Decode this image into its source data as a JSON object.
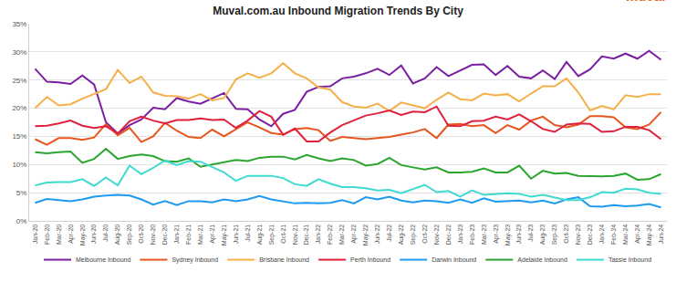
{
  "chart_data": {
    "type": "line",
    "title": "Muval.com.au Inbound Migration Trends By City",
    "annotations": [
      "muval"
    ],
    "categories": [
      "Jan-20",
      "Feb-20",
      "Mar-20",
      "Apr-20",
      "May-20",
      "Jun-20",
      "Jul-20",
      "Aug-20",
      "Sep-20",
      "Oct-20",
      "Nov-20",
      "Dec-20",
      "Jan-21",
      "Feb-21",
      "Mar-21",
      "Apr-21",
      "May-21",
      "Jun-21",
      "Jul-21",
      "Aug-21",
      "Sep-21",
      "Oct-21",
      "Nov-21",
      "Dec-21",
      "Jan-22",
      "Feb-22",
      "Mar-22",
      "Apr-22",
      "May-22",
      "Jun-22",
      "Jul-22",
      "Aug-22",
      "Sep-22",
      "Oct-22",
      "Nov-22",
      "Dec-22",
      "Jan-23",
      "Feb-23",
      "Mar-23",
      "Apr-23",
      "May-23",
      "Jun-23",
      "Jul-23",
      "Aug-23",
      "Sep-23",
      "Oct-23",
      "Nov-23",
      "Dec-23",
      "Jan-24",
      "Feb-24",
      "Mar-24",
      "Apr-24",
      "May-24",
      "Jun-24"
    ],
    "series": [
      {
        "name": "Melbourne Inbound",
        "color": "#7b1fa2",
        "values": [
          27,
          24.7,
          24.6,
          24.3,
          25.8,
          24.2,
          17.5,
          15.5,
          17,
          18,
          20.1,
          19.8,
          21.8,
          21.2,
          20.8,
          21.8,
          22.7,
          19.9,
          19.8,
          18,
          16.8,
          19,
          19.7,
          22.9,
          23.8,
          23.9,
          25.3,
          25.6,
          26.2,
          27,
          25.9,
          27.6,
          24.4,
          25.3,
          27.3,
          25.7,
          26.7,
          27.7,
          27.8,
          25.9,
          27.5,
          25.6,
          25.3,
          26.7,
          25.2,
          28.2,
          25.7,
          26.9,
          29.2,
          28.8,
          29.7,
          28.8,
          30.2,
          28.6
        ]
      },
      {
        "name": "Sydney Inbound",
        "color": "#e8561e",
        "values": [
          14.5,
          13.5,
          14.7,
          14.7,
          14.4,
          14.8,
          17.2,
          15.2,
          16.5,
          14,
          15,
          17.4,
          16,
          14.9,
          14.7,
          16.2,
          15,
          16.2,
          17.5,
          16.6,
          15.6,
          15.3,
          16.3,
          16.5,
          16.1,
          14.2,
          14.9,
          14.7,
          14.5,
          14.7,
          14.9,
          15.3,
          15.7,
          16.3,
          14.7,
          17.1,
          17.2,
          16.8,
          17,
          15.6,
          17,
          16.2,
          17.8,
          18.5,
          17,
          16.6,
          17.1,
          18.6,
          18.6,
          18.4,
          16.6,
          16.3,
          17.1,
          19.3
        ]
      },
      {
        "name": "Brisbane Inbound",
        "color": "#f5b04a",
        "values": [
          20,
          22,
          20.5,
          20.7,
          21.7,
          22.5,
          23.4,
          26.8,
          24.5,
          25.6,
          22.8,
          22.2,
          22.1,
          21.7,
          22.5,
          21.4,
          21.8,
          25.1,
          26.2,
          25.4,
          26.2,
          28,
          26.2,
          25.3,
          23.7,
          23.3,
          21.1,
          20.3,
          20.1,
          20.8,
          19.5,
          21,
          20.5,
          20,
          21.5,
          22.8,
          21.6,
          21.4,
          22.6,
          22.3,
          22.5,
          21.2,
          22.6,
          23.9,
          23.9,
          25.3,
          22.8,
          19.6,
          20.4,
          19.8,
          22.3,
          22,
          22.5,
          22.5
        ]
      },
      {
        "name": "Perth Inbound",
        "color": "#e0213d",
        "values": [
          16.8,
          16.9,
          17.3,
          17.8,
          16.9,
          16.5,
          16.8,
          15.5,
          17.7,
          18.5,
          17.8,
          17.3,
          17.9,
          17.9,
          18.2,
          17.9,
          18,
          16.5,
          17.8,
          19.5,
          18.5,
          15.3,
          16.4,
          14.1,
          14.1,
          15.7,
          17,
          17.9,
          18.7,
          19.1,
          19.6,
          18.8,
          19.4,
          19.3,
          20.3,
          16.9,
          16.8,
          17.7,
          17.8,
          18.5,
          18,
          18.9,
          17.7,
          16.3,
          15.8,
          17.1,
          17.3,
          17.2,
          15.8,
          15.9,
          16.7,
          16.7,
          16.1,
          14.5
        ]
      },
      {
        "name": "Darwin Inbound",
        "color": "#1e9bf0",
        "values": [
          3.2,
          3.9,
          3.7,
          3.5,
          3.8,
          4.3,
          4.5,
          4.6,
          4.5,
          3.8,
          2.9,
          3.5,
          2.8,
          3.5,
          3.5,
          3.3,
          3.8,
          3.5,
          3.8,
          4.4,
          3.8,
          3.4,
          3.1,
          3.2,
          3.1,
          3.2,
          3.7,
          3.1,
          4.2,
          3.8,
          4.3,
          3.6,
          3.3,
          3.6,
          3.5,
          3.2,
          3.8,
          3.2,
          4,
          3.4,
          3.5,
          3.6,
          3.3,
          3.6,
          3.1,
          3.8,
          4.2,
          2.6,
          2.5,
          2.8,
          2.6,
          2.7,
          3,
          2.4
        ]
      },
      {
        "name": "Adelaide Inbound",
        "color": "#2aa52f",
        "values": [
          12.2,
          12,
          12.2,
          12.3,
          10.3,
          11,
          12.8,
          11,
          11.5,
          11.8,
          11.5,
          10.6,
          10.5,
          11.1,
          9.6,
          10,
          10.5,
          10.8,
          10.6,
          11.2,
          11.4,
          11.4,
          10.9,
          11.7,
          11.1,
          10.6,
          11.1,
          10.8,
          9.8,
          10.1,
          11.2,
          9.9,
          9.5,
          9.1,
          9.5,
          8.6,
          8.6,
          8.7,
          9.3,
          8.6,
          8.6,
          9.8,
          7.5,
          8.9,
          8.4,
          8.5,
          8,
          7.9,
          7.9,
          8,
          8.4,
          7.3,
          7.4,
          8.3
        ]
      },
      {
        "name": "Tassie Inbound",
        "color": "#3fdad0",
        "values": [
          6.3,
          6.8,
          6.9,
          6.9,
          7.4,
          6.2,
          7.7,
          6.3,
          9.8,
          8.3,
          9.4,
          10.7,
          9.9,
          10.6,
          10.5,
          9.6,
          8.6,
          7.1,
          8,
          8,
          8,
          7.6,
          6.5,
          6.2,
          7.4,
          6.6,
          6,
          6,
          5.8,
          5.4,
          5.5,
          4.9,
          5.6,
          6.4,
          5.1,
          5.3,
          4.3,
          5.4,
          4.6,
          4.8,
          4.9,
          4.8,
          4.3,
          4.6,
          4.1,
          3.7,
          3.7,
          4.2,
          5.1,
          5,
          5.7,
          5.6,
          5,
          4.8
        ]
      }
    ],
    "ylim": [
      0,
      35
    ],
    "yticks": [
      {
        "value": 0,
        "label": "0%"
      },
      {
        "value": 5,
        "label": "5%"
      },
      {
        "value": 10,
        "label": "10%"
      },
      {
        "value": 15,
        "label": "15%"
      },
      {
        "value": 20,
        "label": "20%"
      },
      {
        "value": 25,
        "label": "25%"
      },
      {
        "value": 30,
        "label": "30%"
      },
      {
        "value": 35,
        "label": "35%"
      }
    ],
    "grid": true,
    "legend": "bottom"
  }
}
